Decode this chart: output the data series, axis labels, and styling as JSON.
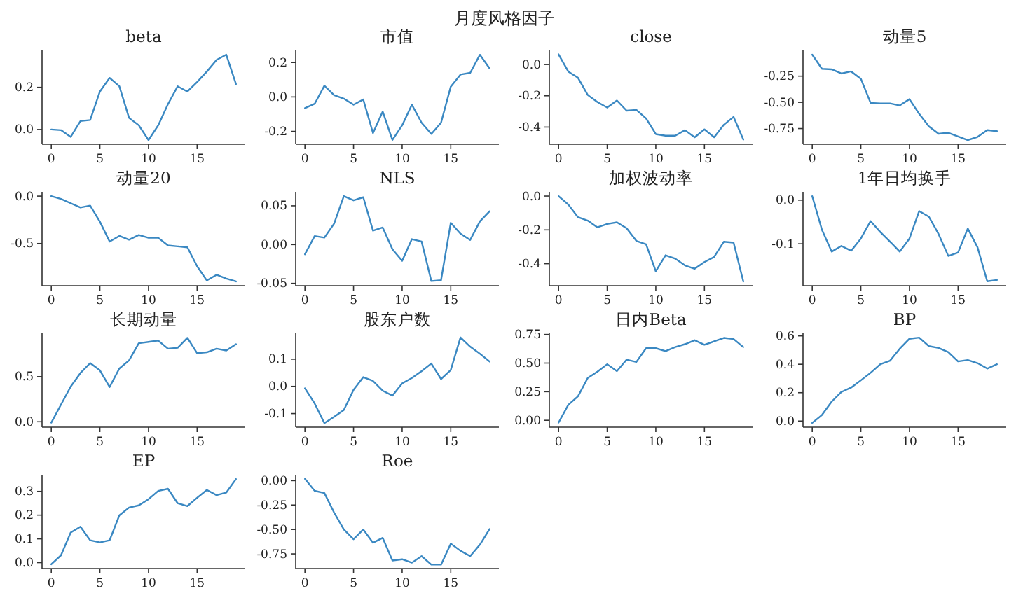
{
  "chart_data": [
    {
      "type": "other",
      "title": "月度风格因子"
    },
    {
      "type": "line",
      "title": "beta",
      "x": [
        0,
        1,
        2,
        3,
        4,
        5,
        6,
        7,
        8,
        9,
        10,
        11,
        12,
        13,
        14,
        15,
        16,
        17,
        18,
        19
      ],
      "color": "#3a88c2",
      "values": [
        0.0,
        -0.003,
        -0.035,
        0.04,
        0.045,
        0.18,
        0.245,
        0.205,
        0.055,
        0.02,
        -0.05,
        0.02,
        0.12,
        0.205,
        0.18,
        0.225,
        0.275,
        0.33,
        0.355,
        0.215
      ],
      "xlim": [
        -0.95,
        19.95
      ],
      "xticks": [
        0,
        5,
        10,
        15
      ],
      "ylim": [
        -0.07,
        0.375
      ],
      "yticks": [
        {
          "value": 0,
          "label": "0.0"
        },
        {
          "value": 0.2,
          "label": "0.2"
        }
      ]
    },
    {
      "type": "line",
      "title": "市值",
      "x": [
        0,
        1,
        2,
        3,
        4,
        5,
        6,
        7,
        8,
        9,
        10,
        11,
        12,
        13,
        14,
        15,
        16,
        17,
        18,
        19
      ],
      "color": "#3a88c2",
      "values": [
        -0.065,
        -0.04,
        0.065,
        0.01,
        -0.01,
        -0.045,
        -0.015,
        -0.21,
        -0.085,
        -0.25,
        -0.165,
        -0.045,
        -0.15,
        -0.215,
        -0.15,
        0.06,
        0.13,
        0.14,
        0.245,
        0.165
      ],
      "xlim": [
        -0.95,
        19.95
      ],
      "xticks": [
        0,
        5,
        10,
        15
      ],
      "ylim": [
        -0.275,
        0.27
      ],
      "yticks": [
        {
          "value": -0.2,
          "label": "-0.2"
        },
        {
          "value": 0,
          "label": "0.0"
        },
        {
          "value": 0.2,
          "label": "0.2"
        }
      ]
    },
    {
      "type": "line",
      "title": "close",
      "x": [
        0,
        1,
        2,
        3,
        4,
        5,
        6,
        7,
        8,
        9,
        10,
        11,
        12,
        13,
        14,
        15,
        16,
        17,
        18,
        19
      ],
      "color": "#3a88c2",
      "values": [
        0.065,
        -0.045,
        -0.085,
        -0.195,
        -0.24,
        -0.275,
        -0.23,
        -0.295,
        -0.29,
        -0.345,
        -0.445,
        -0.455,
        -0.455,
        -0.42,
        -0.465,
        -0.415,
        -0.465,
        -0.385,
        -0.335,
        -0.48
      ],
      "xlim": [
        -0.95,
        19.95
      ],
      "xticks": [
        0,
        5,
        10,
        15
      ],
      "ylim": [
        -0.51,
        0.09
      ],
      "yticks": [
        {
          "value": -0.4,
          "label": "-0.4"
        },
        {
          "value": -0.2,
          "label": "-0.2"
        },
        {
          "value": 0,
          "label": "0.0"
        }
      ]
    },
    {
      "type": "line",
      "title": "动量5",
      "x": [
        0,
        1,
        2,
        3,
        4,
        5,
        6,
        7,
        8,
        9,
        10,
        11,
        12,
        13,
        14,
        15,
        16,
        17,
        18,
        19
      ],
      "color": "#3a88c2",
      "values": [
        -0.045,
        -0.18,
        -0.185,
        -0.225,
        -0.205,
        -0.275,
        -0.505,
        -0.51,
        -0.51,
        -0.53,
        -0.47,
        -0.61,
        -0.73,
        -0.8,
        -0.79,
        -0.825,
        -0.86,
        -0.83,
        -0.765,
        -0.775
      ],
      "xlim": [
        -0.95,
        19.95
      ],
      "xticks": [
        0,
        5,
        10,
        15
      ],
      "ylim": [
        -0.9,
        -0.005
      ],
      "yticks": [
        {
          "value": -0.75,
          "label": "-0.75"
        },
        {
          "value": -0.5,
          "label": "-0.50"
        },
        {
          "value": -0.25,
          "label": "-0.25"
        }
      ]
    },
    {
      "type": "line",
      "title": "动量20",
      "x": [
        0,
        1,
        2,
        3,
        4,
        5,
        6,
        7,
        8,
        9,
        10,
        11,
        12,
        13,
        14,
        15,
        16,
        17,
        18,
        19
      ],
      "color": "#3a88c2",
      "values": [
        0.0,
        -0.03,
        -0.075,
        -0.12,
        -0.1,
        -0.27,
        -0.48,
        -0.42,
        -0.46,
        -0.41,
        -0.44,
        -0.44,
        -0.52,
        -0.53,
        -0.54,
        -0.74,
        -0.89,
        -0.83,
        -0.87,
        -0.9
      ],
      "xlim": [
        -0.95,
        19.95
      ],
      "xticks": [
        0,
        5,
        10,
        15
      ],
      "ylim": [
        -0.945,
        0.045
      ],
      "yticks": [
        {
          "value": -0.5,
          "label": "-0.5"
        },
        {
          "value": 0,
          "label": "0.0"
        }
      ]
    },
    {
      "type": "line",
      "title": "NLS",
      "x": [
        0,
        1,
        2,
        3,
        4,
        5,
        6,
        7,
        8,
        9,
        10,
        11,
        12,
        13,
        14,
        15,
        16,
        17,
        18,
        19
      ],
      "color": "#3a88c2",
      "values": [
        -0.0125,
        0.011,
        0.009,
        0.027,
        0.0625,
        0.057,
        0.061,
        0.018,
        0.022,
        -0.006,
        -0.021,
        0.007,
        0.004,
        -0.047,
        -0.046,
        0.028,
        0.014,
        0.006,
        0.03,
        0.043
      ],
      "xlim": [
        -0.95,
        19.95
      ],
      "xticks": [
        0,
        5,
        10,
        15
      ],
      "ylim": [
        -0.053,
        0.068
      ],
      "yticks": [
        {
          "value": -0.05,
          "label": "-0.05"
        },
        {
          "value": 0,
          "label": "0.00"
        },
        {
          "value": 0.05,
          "label": "0.05"
        }
      ]
    },
    {
      "type": "line",
      "title": "加权波动率",
      "x": [
        0,
        1,
        2,
        3,
        4,
        5,
        6,
        7,
        8,
        9,
        10,
        11,
        12,
        13,
        14,
        15,
        16,
        17,
        18,
        19
      ],
      "color": "#3a88c2",
      "values": [
        0.0,
        -0.05,
        -0.125,
        -0.145,
        -0.185,
        -0.165,
        -0.155,
        -0.19,
        -0.265,
        -0.285,
        -0.445,
        -0.35,
        -0.37,
        -0.41,
        -0.43,
        -0.39,
        -0.36,
        -0.27,
        -0.275,
        -0.505
      ],
      "xlim": [
        -0.95,
        19.95
      ],
      "xticks": [
        0,
        5,
        10,
        15
      ],
      "ylim": [
        -0.53,
        0.025
      ],
      "yticks": [
        {
          "value": -0.4,
          "label": "-0.4"
        },
        {
          "value": -0.2,
          "label": "-0.2"
        },
        {
          "value": 0,
          "label": "0.0"
        }
      ]
    },
    {
      "type": "line",
      "title": "1年日均换手",
      "x": [
        0,
        1,
        2,
        3,
        4,
        5,
        6,
        7,
        8,
        9,
        10,
        11,
        12,
        13,
        14,
        15,
        16,
        17,
        18,
        19
      ],
      "color": "#3a88c2",
      "values": [
        0.009,
        -0.068,
        -0.118,
        -0.105,
        -0.116,
        -0.088,
        -0.048,
        -0.073,
        -0.095,
        -0.118,
        -0.088,
        -0.025,
        -0.038,
        -0.078,
        -0.128,
        -0.12,
        -0.065,
        -0.108,
        -0.186,
        -0.183
      ],
      "xlim": [
        -0.95,
        19.95
      ],
      "xticks": [
        0,
        5,
        10,
        15
      ],
      "ylim": [
        -0.196,
        0.019
      ],
      "yticks": [
        {
          "value": -0.1,
          "label": "-0.1"
        },
        {
          "value": 0,
          "label": "0.0"
        }
      ]
    },
    {
      "type": "line",
      "title": "长期动量",
      "x": [
        0,
        1,
        2,
        3,
        4,
        5,
        6,
        7,
        8,
        9,
        10,
        11,
        12,
        13,
        14,
        15,
        16,
        17,
        18,
        19
      ],
      "color": "#3a88c2",
      "values": [
        -0.01,
        0.19,
        0.39,
        0.54,
        0.65,
        0.57,
        0.385,
        0.59,
        0.68,
        0.87,
        0.885,
        0.9,
        0.81,
        0.82,
        0.93,
        0.76,
        0.77,
        0.81,
        0.79,
        0.86
      ],
      "xlim": [
        -0.95,
        19.95
      ],
      "xticks": [
        0,
        5,
        10,
        15
      ],
      "ylim": [
        -0.06,
        0.98
      ],
      "yticks": [
        {
          "value": 0,
          "label": "0.0"
        },
        {
          "value": 0.5,
          "label": "0.5"
        }
      ]
    },
    {
      "type": "line",
      "title": "股东户数",
      "x": [
        0,
        1,
        2,
        3,
        4,
        5,
        6,
        7,
        8,
        9,
        10,
        11,
        12,
        13,
        14,
        15,
        16,
        17,
        18,
        19
      ],
      "color": "#3a88c2",
      "values": [
        -0.007,
        -0.063,
        -0.135,
        -0.112,
        -0.087,
        -0.013,
        0.034,
        0.02,
        -0.016,
        -0.034,
        0.011,
        0.031,
        0.056,
        0.084,
        0.027,
        0.06,
        0.18,
        0.146,
        0.12,
        0.091
      ],
      "xlim": [
        -0.95,
        19.95
      ],
      "xticks": [
        0,
        5,
        10,
        15
      ],
      "ylim": [
        -0.15,
        0.195
      ],
      "yticks": [
        {
          "value": -0.1,
          "label": "-0.1"
        },
        {
          "value": 0,
          "label": "0.0"
        },
        {
          "value": 0.1,
          "label": "0.1"
        }
      ]
    },
    {
      "type": "line",
      "title": "日内Beta",
      "x": [
        0,
        1,
        2,
        3,
        4,
        5,
        6,
        7,
        8,
        9,
        10,
        11,
        12,
        13,
        14,
        15,
        16,
        17,
        18,
        19
      ],
      "color": "#3a88c2",
      "values": [
        -0.02,
        0.135,
        0.21,
        0.37,
        0.425,
        0.49,
        0.43,
        0.53,
        0.51,
        0.63,
        0.63,
        0.605,
        0.64,
        0.665,
        0.7,
        0.66,
        0.69,
        0.72,
        0.71,
        0.64
      ],
      "xlim": [
        -0.95,
        19.95
      ],
      "xticks": [
        0,
        5,
        10,
        15
      ],
      "ylim": [
        -0.06,
        0.76
      ],
      "yticks": [
        {
          "value": 0,
          "label": "0.00"
        },
        {
          "value": 0.25,
          "label": "0.25"
        },
        {
          "value": 0.5,
          "label": "0.50"
        },
        {
          "value": 0.75,
          "label": "0.75"
        }
      ]
    },
    {
      "type": "line",
      "title": "BP",
      "x": [
        0,
        1,
        2,
        3,
        4,
        5,
        6,
        7,
        8,
        9,
        10,
        11,
        12,
        13,
        14,
        15,
        16,
        17,
        18,
        19
      ],
      "color": "#3a88c2",
      "values": [
        -0.013,
        0.043,
        0.137,
        0.205,
        0.236,
        0.287,
        0.34,
        0.4,
        0.425,
        0.51,
        0.58,
        0.588,
        0.528,
        0.515,
        0.485,
        0.42,
        0.43,
        0.408,
        0.37,
        0.4
      ],
      "xlim": [
        -0.95,
        19.95
      ],
      "xticks": [
        0,
        5,
        10,
        15
      ],
      "ylim": [
        -0.043,
        0.618
      ],
      "yticks": [
        {
          "value": 0,
          "label": "0.0"
        },
        {
          "value": 0.2,
          "label": "0.2"
        },
        {
          "value": 0.4,
          "label": "0.4"
        },
        {
          "value": 0.6,
          "label": "0.6"
        }
      ]
    },
    {
      "type": "line",
      "title": "EP",
      "x": [
        0,
        1,
        2,
        3,
        4,
        5,
        6,
        7,
        8,
        9,
        10,
        11,
        12,
        13,
        14,
        15,
        16,
        17,
        18,
        19
      ],
      "color": "#3a88c2",
      "values": [
        -0.007,
        0.031,
        0.127,
        0.151,
        0.094,
        0.085,
        0.094,
        0.199,
        0.232,
        0.241,
        0.267,
        0.302,
        0.311,
        0.25,
        0.238,
        0.273,
        0.306,
        0.284,
        0.295,
        0.352
      ],
      "xlim": [
        -0.95,
        19.95
      ],
      "xticks": [
        0,
        5,
        10,
        15
      ],
      "ylim": [
        -0.025,
        0.37
      ],
      "yticks": [
        {
          "value": 0,
          "label": "0.0"
        },
        {
          "value": 0.1,
          "label": "0.1"
        },
        {
          "value": 0.2,
          "label": "0.2"
        },
        {
          "value": 0.3,
          "label": "0.3"
        }
      ]
    },
    {
      "type": "line",
      "title": "Roe",
      "x": [
        0,
        1,
        2,
        3,
        4,
        5,
        6,
        7,
        8,
        9,
        10,
        11,
        12,
        13,
        14,
        15,
        16,
        17,
        18,
        19
      ],
      "color": "#3a88c2",
      "values": [
        0.018,
        -0.105,
        -0.127,
        -0.327,
        -0.5,
        -0.6,
        -0.5,
        -0.636,
        -0.586,
        -0.818,
        -0.805,
        -0.84,
        -0.773,
        -0.86,
        -0.86,
        -0.645,
        -0.718,
        -0.773,
        -0.655,
        -0.495
      ],
      "xlim": [
        -0.95,
        19.95
      ],
      "xticks": [
        0,
        5,
        10,
        15
      ],
      "ylim": [
        -0.9,
        0.06
      ],
      "yticks": [
        {
          "value": -0.75,
          "label": "-0.75"
        },
        {
          "value": -0.5,
          "label": "-0.50"
        },
        {
          "value": -0.25,
          "label": "-0.25"
        },
        {
          "value": 0,
          "label": "0.00"
        }
      ]
    }
  ]
}
